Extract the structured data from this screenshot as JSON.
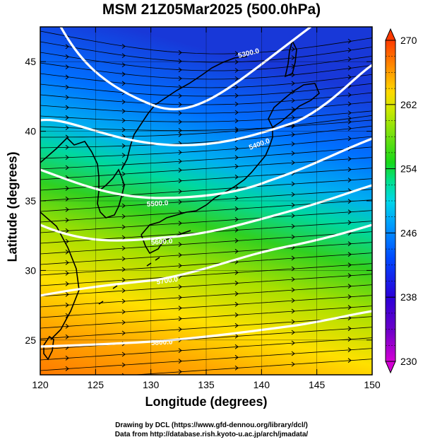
{
  "title": "MSM 21Z05Mar2025 (500.0hPa)",
  "x_axis": {
    "label": "Longitude (degrees)",
    "range": [
      120,
      150
    ],
    "ticks": [
      "120",
      "125",
      "130",
      "135",
      "140",
      "145",
      "150"
    ]
  },
  "y_axis": {
    "label": "Latitude  (degrees)",
    "range": [
      22.5,
      47.5
    ],
    "ticks": [
      "25",
      "30",
      "35",
      "40",
      "45"
    ]
  },
  "colorbar": {
    "ticks": [
      "230",
      "238",
      "246",
      "254",
      "262",
      "270"
    ],
    "range": [
      230,
      270
    ],
    "colors": [
      "#d400d4",
      "#6a00c8",
      "#2a00d8",
      "#0040ff",
      "#0098ff",
      "#00d8e8",
      "#00e090",
      "#18d818",
      "#70e010",
      "#c8e800",
      "#ffd800",
      "#ff8a00",
      "#ff3a00"
    ]
  },
  "contours": [
    {
      "label": "5300.0",
      "lat_at_120": 47.5,
      "lat_at_150": 48.0
    },
    {
      "label": "5400.0",
      "lat_at_120": 42.0,
      "lat_at_150": 45.0
    },
    {
      "label": "5500.0",
      "lat_at_120": 38.5,
      "lat_at_150": 40.5
    },
    {
      "label": "5600.0",
      "lat_at_120": 34.0,
      "lat_at_150": 36.5
    },
    {
      "label": "5700.0",
      "lat_at_120": 29.0,
      "lat_at_150": 33.0
    },
    {
      "label": "5800.0",
      "lat_at_120": 25.0,
      "lat_at_150": 27.0
    }
  ],
  "credits": {
    "line1": "Drawing by DCL (https://www.gfd-dennou.org/library/dcl/)",
    "line2": "Data from http://database.rish.kyoto-u.ac.jp/arch/jmadata/"
  }
}
